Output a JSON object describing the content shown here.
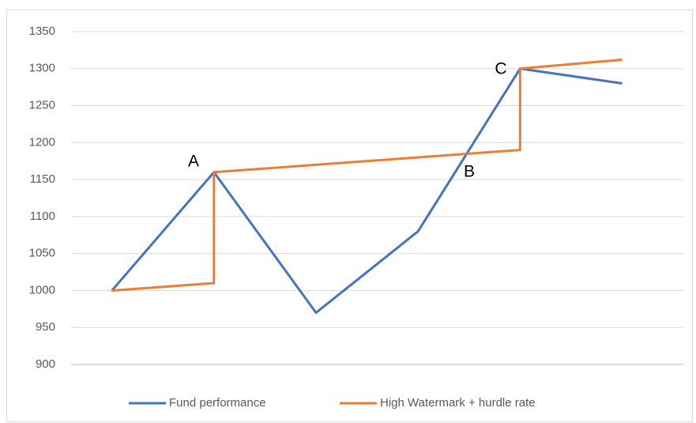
{
  "chart_data": {
    "type": "line",
    "series": [
      {
        "name": "Fund performance",
        "color": "#4472c4",
        "x": [
          1,
          2,
          3,
          4,
          5,
          6
        ],
        "values": [
          1000,
          1160,
          970,
          1080,
          1300,
          1280
        ]
      },
      {
        "name": "High Watermark + hurdle rate",
        "color": "#ed7d31",
        "x": [
          1,
          2,
          2,
          5,
          5,
          6
        ],
        "values": [
          1000,
          1010,
          1160,
          1190,
          1300,
          1312
        ]
      }
    ],
    "xlim": [
      0.6,
      6.6
    ],
    "ylim": [
      900,
      1350
    ],
    "yticks": [
      900,
      950,
      1000,
      1050,
      1100,
      1150,
      1200,
      1250,
      1300,
      1350
    ],
    "grid": true,
    "legend": "bottom",
    "annotations": [
      "A",
      "B",
      "C"
    ]
  }
}
